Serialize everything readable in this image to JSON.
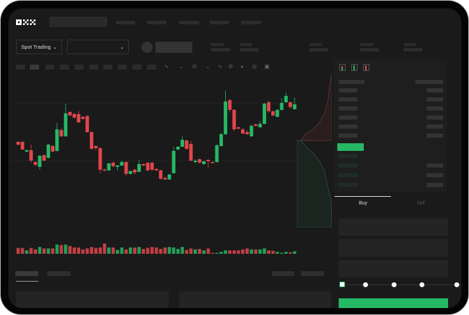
{
  "brand": {
    "logo_text": "OKX"
  },
  "toolbar": {
    "market_type": "Spot Trading"
  },
  "order_book": {
    "icons": [
      "orderbook-both-icon",
      "orderbook-buy-icon",
      "orderbook-sell-icon"
    ]
  },
  "trade_panel": {
    "tabs": [
      {
        "label": "Buy",
        "active": true
      },
      {
        "label": "Sell",
        "active": false
      }
    ],
    "leverage_slider_value": 0,
    "submit_color": "#25b865"
  },
  "colors": {
    "up": "#25b865",
    "down": "#e0464c",
    "background": "#1a1a1a"
  },
  "chart_data": {
    "type": "candlestick",
    "title": "",
    "xlabel": "",
    "ylabel": "",
    "grid": true,
    "candles": [
      [
        97,
        98,
        92,
        93
      ],
      [
        97,
        98,
        85,
        86
      ],
      [
        83,
        86,
        82,
        85
      ],
      [
        85,
        93,
        67,
        70
      ],
      [
        68,
        69,
        62,
        64
      ],
      [
        61,
        78,
        57,
        77
      ],
      [
        78,
        79,
        69,
        70
      ],
      [
        74,
        94,
        73,
        93
      ],
      [
        91,
        92,
        82,
        83
      ],
      [
        84,
        124,
        83,
        115
      ],
      [
        114,
        117,
        104,
        105
      ],
      [
        105,
        152,
        104,
        138
      ],
      [
        140,
        141,
        134,
        135
      ],
      [
        137,
        139,
        130,
        132
      ],
      [
        137,
        142,
        124,
        125
      ],
      [
        133,
        134,
        129,
        130
      ],
      [
        134,
        136,
        110,
        111
      ],
      [
        111,
        112,
        86,
        87
      ],
      [
        91,
        92,
        85,
        88
      ],
      [
        88,
        89,
        52,
        57
      ],
      [
        57,
        59,
        55,
        56
      ],
      [
        56,
        67,
        55,
        66
      ],
      [
        67,
        69,
        60,
        62
      ],
      [
        61,
        64,
        56,
        63
      ],
      [
        63,
        70,
        62,
        68
      ],
      [
        68,
        69,
        48,
        51
      ],
      [
        51,
        56,
        50,
        55
      ],
      [
        57,
        58,
        50,
        53
      ],
      [
        54,
        71,
        53,
        65
      ],
      [
        65,
        66,
        62,
        63
      ],
      [
        67,
        68,
        55,
        56
      ],
      [
        67,
        68,
        55,
        57
      ],
      [
        58,
        59,
        55,
        56
      ],
      [
        56,
        57,
        43,
        44
      ],
      [
        45,
        47,
        42,
        43
      ],
      [
        43,
        51,
        42,
        50
      ],
      [
        52,
        90,
        51,
        84
      ],
      [
        86,
        91,
        85,
        90
      ],
      [
        90,
        105,
        89,
        100
      ],
      [
        99,
        100,
        86,
        87
      ],
      [
        94,
        98,
        69,
        70
      ],
      [
        68,
        72,
        66,
        70
      ],
      [
        72,
        73,
        66,
        67
      ],
      [
        65,
        70,
        64,
        69
      ],
      [
        71,
        72,
        60,
        69
      ],
      [
        68,
        69,
        66,
        67
      ],
      [
        68,
        94,
        67,
        92
      ],
      [
        91,
        110,
        90,
        108
      ],
      [
        108,
        171,
        107,
        155
      ],
      [
        157,
        159,
        139,
        143
      ],
      [
        143,
        144,
        112,
        115
      ],
      [
        118,
        119,
        115,
        116
      ],
      [
        115,
        117,
        108,
        109
      ],
      [
        111,
        114,
        107,
        108
      ],
      [
        105,
        122,
        104,
        120
      ],
      [
        122,
        124,
        119,
        120
      ],
      [
        118,
        127,
        117,
        123
      ],
      [
        123,
        153,
        122,
        152
      ],
      [
        154,
        156,
        139,
        141
      ],
      [
        141,
        142,
        134,
        135
      ],
      [
        133,
        144,
        132,
        143
      ],
      [
        143,
        160,
        142,
        153
      ],
      [
        154,
        168,
        153,
        163
      ],
      [
        154,
        155,
        145,
        147
      ],
      [
        144,
        161,
        143,
        151
      ]
    ],
    "volume": [
      12,
      12,
      7,
      12,
      9,
      14,
      11,
      11,
      11,
      19,
      18,
      19,
      16,
      13,
      13,
      9,
      11,
      14,
      12,
      13,
      21,
      13,
      13,
      8,
      13,
      9,
      13,
      13,
      14,
      10,
      12,
      14,
      13,
      10,
      13,
      14,
      13,
      10,
      14,
      8,
      11,
      9,
      10,
      7,
      11,
      2,
      2,
      4,
      7,
      7,
      7,
      7,
      9,
      11,
      9,
      9,
      9,
      11,
      7,
      6,
      4,
      2,
      4,
      3,
      5
    ]
  }
}
